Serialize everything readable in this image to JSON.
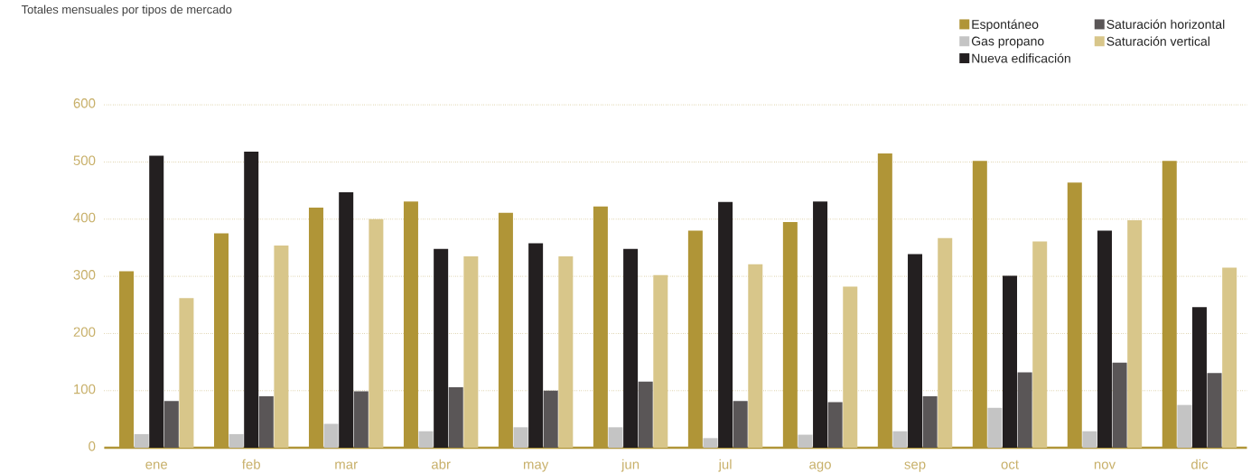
{
  "chart_data": {
    "type": "bar",
    "title": "Totales mensuales por tipos de mercado",
    "categories": [
      "ene",
      "feb",
      "mar",
      "abr",
      "may",
      "jun",
      "jul",
      "ago",
      "sep",
      "oct",
      "nov",
      "dic"
    ],
    "series": [
      {
        "name": "Espontáneo",
        "color": "#b09537",
        "values": [
          309,
          375,
          420,
          431,
          411,
          422,
          380,
          395,
          515,
          502,
          464,
          502
        ]
      },
      {
        "name": "Gas propano",
        "color": "#c4c4c4",
        "values": [
          24,
          24,
          42,
          29,
          36,
          36,
          17,
          23,
          29,
          70,
          29,
          75
        ]
      },
      {
        "name": "Nueva edificación",
        "color": "#231f20",
        "values": [
          511,
          518,
          447,
          348,
          358,
          348,
          430,
          431,
          339,
          301,
          380,
          246
        ]
      },
      {
        "name": "Saturación horizontal",
        "color": "#5a5657",
        "values": [
          82,
          90,
          99,
          106,
          100,
          116,
          82,
          80,
          90,
          132,
          149,
          131
        ]
      },
      {
        "name": "Saturación vertical",
        "color": "#d8c68a",
        "values": [
          262,
          354,
          400,
          335,
          335,
          302,
          321,
          282,
          367,
          361,
          398,
          315
        ]
      }
    ],
    "ylim": [
      0,
      600
    ],
    "yticks": [
      0,
      100,
      200,
      300,
      400,
      500,
      600
    ],
    "grid": "y",
    "legend": "top right"
  }
}
